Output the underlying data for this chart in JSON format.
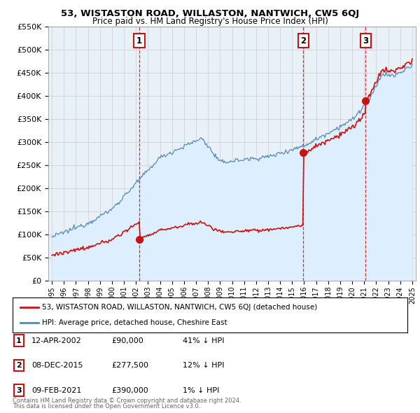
{
  "title": "53, WISTASTON ROAD, WILLASTON, NANTWICH, CW5 6QJ",
  "subtitle": "Price paid vs. HM Land Registry's House Price Index (HPI)",
  "sale_dates_num": [
    2002.28,
    2015.93,
    2021.11
  ],
  "sale_prices": [
    90000,
    277500,
    390000
  ],
  "sale_labels": [
    "1",
    "2",
    "3"
  ],
  "sale_date_labels": [
    "12-APR-2002",
    "08-DEC-2015",
    "09-FEB-2021"
  ],
  "sale_pct_labels": [
    "41% ↓ HPI",
    "12% ↓ HPI",
    "1% ↓ HPI"
  ],
  "hpi_color": "#5588bb",
  "paid_color": "#cc1111",
  "hpi_fill_color": "#ddeeff",
  "background_color": "#ffffff",
  "grid_color": "#cccccc",
  "ylim": [
    0,
    550000
  ],
  "xlim": [
    1994.7,
    2025.3
  ],
  "legend_label_red": "53, WISTASTON ROAD, WILLASTON, NANTWICH, CW5 6QJ (detached house)",
  "legend_label_blue": "HPI: Average price, detached house, Cheshire East",
  "footer1": "Contains HM Land Registry data © Crown copyright and database right 2024.",
  "footer2": "This data is licensed under the Open Government Licence v3.0."
}
